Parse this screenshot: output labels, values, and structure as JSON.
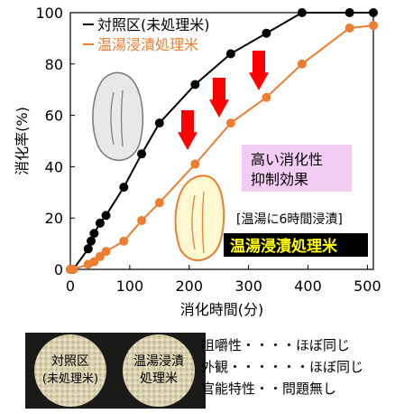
{
  "chart_data": {
    "type": "line",
    "ylabel": "消化率(%)",
    "xlabel": "消化時間(分)",
    "xlim": [
      0,
      510
    ],
    "ylim": [
      0,
      100
    ],
    "xticks": [
      "0",
      "100",
      "200",
      "300",
      "400",
      "500"
    ],
    "yticks": [
      "0",
      "20",
      "40",
      "60",
      "80",
      "100"
    ],
    "legend_position": "top-left",
    "series": [
      {
        "name": "対照区(未処理米)",
        "color": "#000000",
        "x": [
          0,
          5,
          30,
          35,
          40,
          50,
          60,
          90,
          120,
          150,
          210,
          270,
          330,
          390,
          470,
          510
        ],
        "y": [
          0,
          0,
          8,
          11,
          14,
          18,
          21,
          32,
          45,
          57,
          72,
          84,
          92,
          100,
          100,
          100
        ]
      },
      {
        "name": "温湯浸漬処理米",
        "color": "#ED7D31",
        "x": [
          0,
          5,
          30,
          40,
          50,
          60,
          90,
          120,
          150,
          210,
          270,
          330,
          390,
          470,
          510
        ],
        "y": [
          0,
          0,
          2,
          3,
          5,
          7,
          11,
          19,
          26,
          41,
          57,
          67,
          80,
          94,
          95
        ]
      }
    ],
    "annotations": {
      "effect_label_1": "高い消化性",
      "effect_label_2": "抑制効果",
      "treatment_note": "[温湯に6時間浸漬]",
      "treatment_label": "温湯浸漬処理米"
    }
  },
  "photos": {
    "control_label_1": "対照区",
    "control_label_2": "(未処理米)",
    "treated_label_1": "温湯浸漬",
    "treated_label_2": "処理米"
  },
  "notes": [
    "咀嚼性・・・・ほぼ同じ",
    "外観・・・・・・ほぼ同じ",
    "官能特性・・問題無し"
  ],
  "colors": {
    "control": "#000000",
    "treated": "#ED7D31",
    "arrow": "#FF0000",
    "highlight_box": "#F2CCF2",
    "treated_badge_bg": "#000000",
    "treated_badge_text": "#FFFF00"
  }
}
